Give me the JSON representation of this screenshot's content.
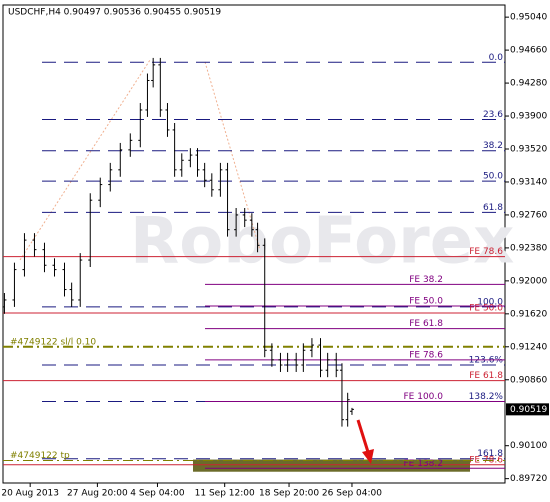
{
  "chart_data": {
    "type": "candlestick",
    "title": "USDCHF,H4 0.90497 0.90536 0.90455 0.90519",
    "watermark": "RoboForex",
    "color": "#000000",
    "x": [
      1,
      8,
      15,
      22,
      29,
      36,
      43,
      48,
      54,
      61,
      68,
      75,
      82,
      89,
      96,
      101,
      105,
      110,
      115,
      120,
      125,
      131,
      136,
      141,
      146,
      152,
      157,
      163,
      169,
      174,
      178,
      183,
      188,
      194,
      199,
      205,
      210,
      216,
      222,
      227,
      233,
      237,
      241,
      244
    ],
    "open": [
      0.917,
      0.9178,
      0.9213,
      0.9247,
      0.9236,
      0.9218,
      0.9213,
      0.919,
      0.9178,
      0.9224,
      0.9293,
      0.9311,
      0.9328,
      0.9351,
      0.9362,
      0.9397,
      0.9431,
      0.9449,
      0.9397,
      0.9374,
      0.9328,
      0.9339,
      0.9345,
      0.9328,
      0.9316,
      0.9305,
      0.9328,
      0.9259,
      0.9276,
      0.927,
      0.9259,
      0.9241,
      0.912,
      0.9109,
      0.9103,
      0.9109,
      0.9103,
      0.912,
      0.9126,
      0.9097,
      0.9109,
      0.9097,
      0.904,
      0.90497
    ],
    "high": [
      0.9186,
      0.9221,
      0.9255,
      0.9255,
      0.9244,
      0.9226,
      0.9221,
      0.9198,
      0.9232,
      0.9301,
      0.9319,
      0.9336,
      0.9359,
      0.937,
      0.9405,
      0.9439,
      0.9457,
      0.9457,
      0.9405,
      0.9382,
      0.9347,
      0.9353,
      0.9353,
      0.9336,
      0.9324,
      0.9336,
      0.9336,
      0.9284,
      0.9284,
      0.9278,
      0.9267,
      0.9249,
      0.9128,
      0.9117,
      0.9117,
      0.9117,
      0.9128,
      0.9134,
      0.9134,
      0.9117,
      0.9117,
      0.9105,
      0.9071,
      0.90536
    ],
    "low": [
      0.9162,
      0.917,
      0.9205,
      0.9228,
      0.921,
      0.9205,
      0.9182,
      0.917,
      0.917,
      0.9216,
      0.9285,
      0.9303,
      0.932,
      0.9343,
      0.9354,
      0.9389,
      0.9423,
      0.9389,
      0.9366,
      0.932,
      0.932,
      0.9331,
      0.932,
      0.9308,
      0.9297,
      0.9297,
      0.9251,
      0.9251,
      0.9262,
      0.9251,
      0.9233,
      0.9112,
      0.9101,
      0.9095,
      0.9095,
      0.9095,
      0.9095,
      0.9112,
      0.9089,
      0.9089,
      0.9089,
      0.9032,
      0.9032,
      0.90455
    ],
    "close": [
      0.9178,
      0.9213,
      0.9247,
      0.9236,
      0.9218,
      0.9213,
      0.919,
      0.9178,
      0.9224,
      0.9293,
      0.9311,
      0.9328,
      0.9351,
      0.9362,
      0.9397,
      0.9431,
      0.9449,
      0.9397,
      0.9374,
      0.9328,
      0.9339,
      0.9345,
      0.9328,
      0.9316,
      0.9305,
      0.9328,
      0.9259,
      0.9276,
      0.927,
      0.9259,
      0.9241,
      0.912,
      0.9109,
      0.9103,
      0.9109,
      0.9103,
      0.912,
      0.9126,
      0.9097,
      0.9109,
      0.9097,
      0.904,
      0.9063,
      0.90519
    ],
    "xlim": [
      0,
      351
    ],
    "ylim": [
      0.8967,
      0.9518
    ],
    "xticks": [
      {
        "value": 19,
        "label": "20 Aug 2013"
      },
      {
        "value": 66,
        "label": "27 Aug 20:00"
      },
      {
        "value": 108,
        "label": "4 Sep 04:00"
      },
      {
        "value": 155,
        "label": "11 Sep 12:00"
      },
      {
        "value": 200,
        "label": "18 Sep 20:00"
      },
      {
        "value": 244,
        "label": "26 Sep 04:00"
      }
    ],
    "yticks": [
      {
        "value": 0.9504,
        "label": "0.95040"
      },
      {
        "value": 0.9466,
        "label": "0.94660"
      },
      {
        "value": 0.9428,
        "label": "0.94280"
      },
      {
        "value": 0.939,
        "label": "0.93900"
      },
      {
        "value": 0.9352,
        "label": "0.93520"
      },
      {
        "value": 0.9314,
        "label": "0.93140"
      },
      {
        "value": 0.9276,
        "label": "0.92760"
      },
      {
        "value": 0.9238,
        "label": "0.92380"
      },
      {
        "value": 0.92,
        "label": "0.92000"
      },
      {
        "value": 0.9162,
        "label": "0.91620"
      },
      {
        "value": 0.9124,
        "label": "0.91240"
      },
      {
        "value": 0.9086,
        "label": "0.90860"
      },
      {
        "value": 0.901,
        "label": "0.90100"
      },
      {
        "value": 0.8972,
        "label": "0.89720"
      }
    ],
    "last_price": 0.90519,
    "grid": false,
    "zone": {
      "low": 0.898,
      "high": 0.8994,
      "color": "#6b6b2a"
    },
    "level_styles": {
      "fibo": {
        "color": "#1a1a80",
        "dash": "14 8"
      },
      "fe": {
        "color": "#cc2233",
        "dash": "none"
      },
      "fe2": {
        "color": "#800080",
        "dash": "none"
      },
      "order": {
        "color": "#808000",
        "dash": "10 4 2 4"
      }
    },
    "levels": [
      {
        "label": "0.0",
        "value": 0.9452,
        "group": "fibo"
      },
      {
        "label": "23.6",
        "value": 0.9386,
        "group": "fibo"
      },
      {
        "label": "38.2",
        "value": 0.935,
        "group": "fibo"
      },
      {
        "label": "50.0",
        "value": 0.9315,
        "group": "fibo"
      },
      {
        "label": "61.8",
        "value": 0.9279,
        "group": "fibo"
      },
      {
        "label": "100.0",
        "value": 0.917,
        "group": "fibo"
      },
      {
        "label": "123.6%",
        "value": 0.9103,
        "group": "fibo"
      },
      {
        "label": "138.2%",
        "value": 0.9061,
        "group": "fibo"
      },
      {
        "label": "161.8",
        "value": 0.8995,
        "group": "fibo"
      },
      {
        "label": "FE 78.6",
        "value": 0.9228,
        "group": "fe"
      },
      {
        "label": "FE 50.0",
        "value": 0.9163,
        "group": "fe"
      },
      {
        "label": "FE 61.8",
        "value": 0.9085,
        "group": "fe"
      },
      {
        "label": "FE 78.6",
        "value": 0.8988,
        "group": "fe"
      },
      {
        "label": "FE 38.2",
        "value": 0.9196,
        "group": "fe2"
      },
      {
        "label": "FE 50.0",
        "value": 0.9171,
        "group": "fe2"
      },
      {
        "label": "FE 61.8",
        "value": 0.9145,
        "group": "fe2"
      },
      {
        "label": "FE 78.6",
        "value": 0.9109,
        "group": "fe2"
      },
      {
        "label": "FE 100.0",
        "value": 0.9061,
        "group": "fe2"
      },
      {
        "label": "FE 138.2",
        "value": 0.8984,
        "group": "fe2"
      },
      {
        "label": "#4749122 sl/l 0.10",
        "value": 0.9124,
        "group": "order"
      },
      {
        "label": "#4749122 tp",
        "value": 0.8993,
        "group": "order"
      }
    ]
  }
}
